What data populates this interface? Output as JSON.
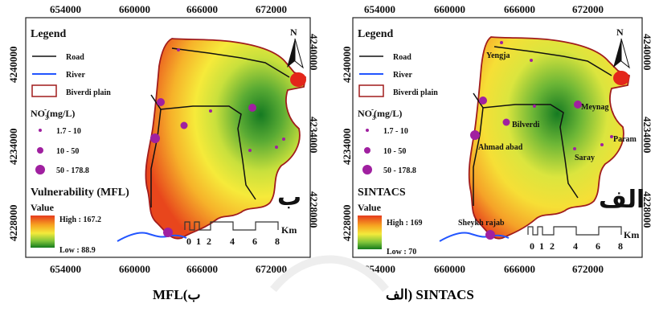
{
  "maps": [
    {
      "id": "mfl",
      "x_ticks": [
        "654000",
        "660000",
        "666000",
        "672000"
      ],
      "y_ticks": [
        "4240000",
        "4234000",
        "4228000"
      ],
      "legend": {
        "title": "Legend",
        "road": "Road",
        "river": "River",
        "plain": "Biverdi plain",
        "no3_no": "NO",
        "no3_sub": "3",
        "no3_sup": "-",
        "no3_unit": "(mg/L)",
        "class1": "1.7 - 10",
        "class2": "10 - 50",
        "class3": "50 - 178.8",
        "index_title": "Vulnerability (MFL)",
        "value_label": "Value",
        "high": "High : 167.2",
        "low": "Low : 88.9"
      },
      "scalebar": {
        "labels": [
          "0",
          "1",
          "2",
          "4",
          "6",
          "8"
        ],
        "unit": "Km"
      },
      "north": "N",
      "panel_letter": "ب",
      "place_names": []
    },
    {
      "id": "sintacs",
      "x_ticks": [
        "654000",
        "660000",
        "666000",
        "672000"
      ],
      "y_ticks": [
        "4240000",
        "4234000",
        "4228000"
      ],
      "legend": {
        "title": "Legend",
        "road": "Road",
        "river": "River",
        "plain": "Biverdi plain",
        "no3_no": "NO",
        "no3_sub": "3",
        "no3_sup": "-",
        "no3_unit": "(mg/L)",
        "class1": "1.7 - 10",
        "class2": "10 - 50",
        "class3": "50 - 178.8",
        "index_title": "SINTACS",
        "value_label": "Value",
        "high": "High : 169",
        "low": "Low : 70"
      },
      "scalebar": {
        "labels": [
          "0",
          "1",
          "2",
          "4",
          "6",
          "8"
        ],
        "unit": "Km"
      },
      "north": "N",
      "panel_letter": "الف",
      "place_names": [
        "Yengja",
        "Meynag",
        "Bilverdi",
        "Ahmad abad",
        "Saray",
        "Param",
        "Sheykh rajab"
      ]
    }
  ],
  "captions": {
    "left": "MFL(ب",
    "right": "الف) SINTACS"
  },
  "colors": {
    "road": "#111111",
    "river": "#2255ff",
    "plain_border": "#a01c1c",
    "point": "#a020a0"
  }
}
